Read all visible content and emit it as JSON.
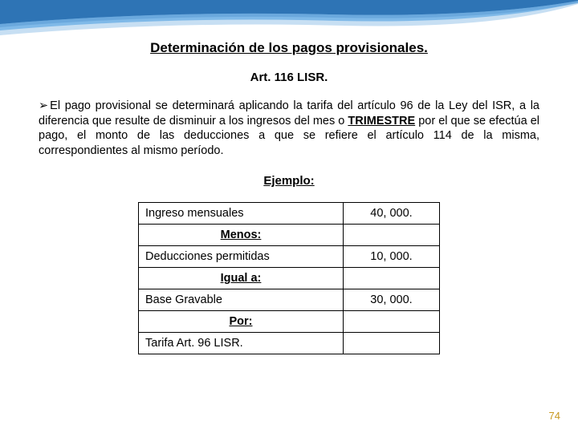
{
  "swoosh": {
    "outer_fill": "#c7dff3",
    "mid_fill": "#7fb9e8",
    "inner_fill": "#2e74b5",
    "shadow": "#5a9bd4"
  },
  "title": "Determinación de los pagos provisionales.",
  "subtitle": "Art.  116  LISR.",
  "para_prefix": "El pago provisional se determinará aplicando la tarifa del artículo 96 de la Ley del ISR, a la diferencia que resulte de disminuir a los ingresos del mes o ",
  "para_bold": "TRIMESTRE",
  "para_suffix": "  por el que se efectúa el pago, el monto de las deducciones a que se refiere el artículo 114 de la misma, correspondientes al mismo período.",
  "example_label": "Ejemplo:",
  "table": {
    "rows": [
      {
        "label": "Ingreso mensuales",
        "value": "40, 000.",
        "head": false
      },
      {
        "label": "Menos:",
        "value": "",
        "head": true
      },
      {
        "label": "Deducciones permitidas",
        "value": "10, 000.",
        "head": false
      },
      {
        "label": "Igual a:",
        "value": "",
        "head": true
      },
      {
        "label": "Base Gravable",
        "value": "30, 000.",
        "head": false
      },
      {
        "label": "Por:",
        "value": "",
        "head": true
      },
      {
        "label": "Tarifa Art.  96  LISR.",
        "value": "",
        "head": false
      }
    ]
  },
  "page_number": "74"
}
